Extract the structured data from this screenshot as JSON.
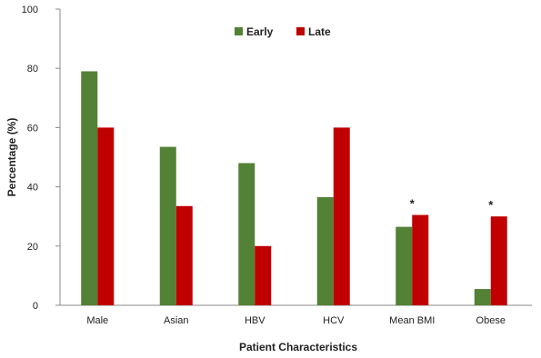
{
  "chart_data": {
    "type": "bar",
    "categories": [
      "Male",
      "Asian",
      "HBV",
      "HCV",
      "Mean BMI",
      "Obese"
    ],
    "series": [
      {
        "name": "Early",
        "values": [
          79,
          53.5,
          48,
          36.5,
          26.5,
          5.5
        ],
        "color": "#538135"
      },
      {
        "name": "Late",
        "values": [
          60,
          33.5,
          20,
          60,
          30.5,
          30
        ],
        "color": "#c00000"
      }
    ],
    "xlabel": "Patient Characteristics",
    "ylabel": "Percentage (%)",
    "ylim": [
      0,
      100
    ],
    "yticks": [
      0,
      20,
      40,
      60,
      80,
      100
    ],
    "annotations": [
      {
        "category": "Mean BMI",
        "text": "*"
      },
      {
        "category": "Obese",
        "text": "*"
      }
    ],
    "legend": {
      "position": "top-center"
    },
    "grid": false
  }
}
